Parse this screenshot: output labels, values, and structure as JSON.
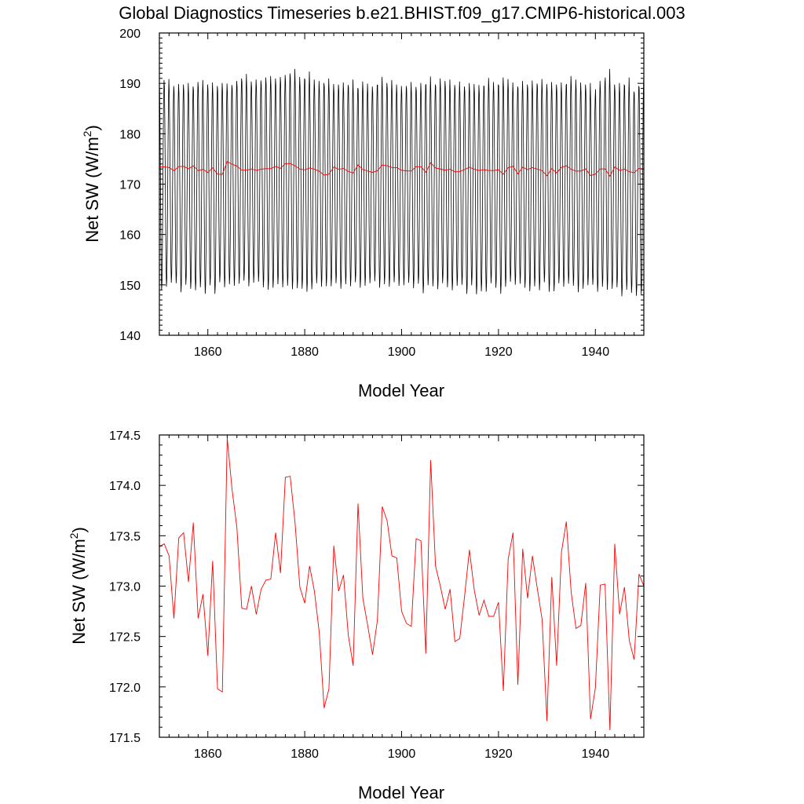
{
  "title": "Global Diagnostics Timeseries b.e21.BHIST.f09_g17.CMIP6-historical.003",
  "chart_data": [
    {
      "type": "line",
      "xlabel": "Model Year",
      "ylabel_main": "Net SW (W/m",
      "ylabel_sup": "2",
      "ylabel_close": ")",
      "xlim": [
        1850,
        1950
      ],
      "ylim": [
        140,
        200
      ],
      "xticks": [
        "1860",
        "1880",
        "1900",
        "1920",
        "1940"
      ],
      "yticks": [
        "140",
        "150",
        "160",
        "170",
        "180",
        "190",
        "200"
      ],
      "grid": false,
      "series": [
        {
          "kind": "monthly",
          "color": "#000000",
          "months_per_year": 12,
          "annual_max": [
            190.8,
            191.0,
            189.6,
            190.0,
            189.9,
            190.2,
            189.5,
            190.4,
            190.8,
            189.9,
            190.3,
            189.6,
            190.2,
            190.1,
            189.8,
            190.6,
            191.1,
            192.0,
            190.5,
            190.9,
            190.7,
            191.3,
            191.6,
            191.1,
            191.4,
            191.8,
            192.1,
            193.0,
            191.4,
            191.1,
            192.5,
            190.9,
            190.6,
            190.2,
            191.1,
            190.0,
            189.9,
            190.3,
            189.8,
            190.9,
            189.2,
            190.5,
            190.1,
            189.5,
            189.8,
            191.4,
            190.2,
            190.8,
            189.9,
            189.6,
            189.6,
            190.4,
            189.4,
            190.2,
            189.8,
            191.5,
            189.9,
            191.1,
            190.6,
            190.9,
            189.8,
            190.5,
            189.5,
            190.2,
            190.0,
            189.8,
            189.6,
            191.2,
            190.4,
            189.9,
            191.3,
            191.0,
            190.3,
            189.5,
            190.6,
            189.9,
            190.7,
            190.1,
            191.0,
            190.0,
            190.4,
            189.9,
            190.3,
            189.7,
            191.6,
            190.9,
            190.3,
            189.9,
            190.2,
            187.3,
            190.6,
            190.2,
            193.0,
            189.9,
            190.2,
            189.8,
            191.3,
            188.5,
            189.6,
            190.9
          ],
          "annual_min": [
            148.8,
            149.5,
            150.3,
            150.2,
            148.4,
            149.9,
            149.1,
            148.8,
            149.4,
            148.1,
            149.8,
            148.1,
            150.4,
            149.4,
            150.0,
            149.7,
            150.1,
            150.7,
            149.6,
            150.3,
            150.5,
            149.4,
            148.9,
            149.3,
            150.0,
            149.4,
            149.7,
            149.0,
            149.2,
            149.1,
            148.5,
            149.0,
            150.2,
            149.5,
            149.6,
            149.6,
            150.2,
            149.1,
            150.0,
            149.6,
            150.4,
            149.3,
            149.7,
            150.2,
            150.6,
            149.3,
            150.0,
            149.5,
            150.4,
            149.7,
            149.8,
            150.3,
            149.2,
            150.1,
            148.2,
            149.8,
            149.6,
            149.0,
            150.2,
            149.4,
            148.8,
            149.7,
            149.9,
            148.1,
            149.8,
            148.0,
            148.6,
            148.5,
            150.2,
            149.3,
            148.1,
            149.5,
            150.5,
            149.9,
            150.1,
            149.3,
            148.6,
            149.6,
            148.8,
            150.4,
            148.5,
            148.6,
            150.2,
            149.5,
            150.1,
            149.7,
            148.4,
            149.1,
            149.8,
            149.9,
            148.5,
            149.5,
            148.9,
            149.1,
            149.4,
            147.6,
            148.9,
            148.3,
            147.7,
            148.0
          ]
        },
        {
          "kind": "annual",
          "color": "#ff0000",
          "years": [
            1850,
            1851,
            1852,
            1853,
            1854,
            1855,
            1856,
            1857,
            1858,
            1859,
            1860,
            1861,
            1862,
            1863,
            1864,
            1865,
            1866,
            1867,
            1868,
            1869,
            1870,
            1871,
            1872,
            1873,
            1874,
            1875,
            1876,
            1877,
            1878,
            1879,
            1880,
            1881,
            1882,
            1883,
            1884,
            1885,
            1886,
            1887,
            1888,
            1889,
            1890,
            1891,
            1892,
            1893,
            1894,
            1895,
            1896,
            1897,
            1898,
            1899,
            1900,
            1901,
            1902,
            1903,
            1904,
            1905,
            1906,
            1907,
            1908,
            1909,
            1910,
            1911,
            1912,
            1913,
            1914,
            1915,
            1916,
            1917,
            1918,
            1919,
            1920,
            1921,
            1922,
            1923,
            1924,
            1925,
            1926,
            1927,
            1928,
            1929,
            1930,
            1931,
            1932,
            1933,
            1934,
            1935,
            1936,
            1937,
            1938,
            1939,
            1940,
            1941,
            1942,
            1943,
            1944,
            1945,
            1946,
            1947,
            1948,
            1949,
            1950
          ],
          "values": [
            173.39,
            173.42,
            173.3,
            172.68,
            173.48,
            173.53,
            173.04,
            173.63,
            172.68,
            172.92,
            172.31,
            173.25,
            171.98,
            171.95,
            174.47,
            173.96,
            173.58,
            172.78,
            172.77,
            173.0,
            172.72,
            172.97,
            173.06,
            173.07,
            173.53,
            173.13,
            174.08,
            174.09,
            173.63,
            172.99,
            172.83,
            173.2,
            172.95,
            172.54,
            171.79,
            171.98,
            173.4,
            172.95,
            173.11,
            172.51,
            172.21,
            173.82,
            172.88,
            172.61,
            172.32,
            172.66,
            173.79,
            173.65,
            173.3,
            173.28,
            172.75,
            172.63,
            172.6,
            173.47,
            173.45,
            172.33,
            174.25,
            173.2,
            173.0,
            172.77,
            172.97,
            172.45,
            172.48,
            172.9,
            173.36,
            172.96,
            172.71,
            172.86,
            172.7,
            172.7,
            172.84,
            171.96,
            173.27,
            173.53,
            172.02,
            173.37,
            172.88,
            173.3,
            172.98,
            172.67,
            171.66,
            173.09,
            172.21,
            173.34,
            173.64,
            172.94,
            172.58,
            172.61,
            173.03,
            171.68,
            171.99,
            173.01,
            173.02,
            171.57,
            173.42,
            172.72,
            172.99,
            172.46,
            172.27,
            173.12,
            173.0
          ]
        }
      ]
    },
    {
      "type": "line",
      "xlabel": "Model Year",
      "ylabel_main": "Net SW (W/m",
      "ylabel_sup": "2",
      "ylabel_close": ")",
      "xlim": [
        1850,
        1950
      ],
      "ylim": [
        171.5,
        174.5
      ],
      "xticks": [
        "1860",
        "1880",
        "1900",
        "1920",
        "1940"
      ],
      "yticks": [
        "171.5",
        "172.0",
        "172.5",
        "173.0",
        "173.5",
        "174.0",
        "174.5"
      ],
      "grid": false,
      "series": [
        {
          "kind": "annual",
          "color": "#ff0000",
          "ref": "same as top panel annual series"
        }
      ]
    }
  ]
}
